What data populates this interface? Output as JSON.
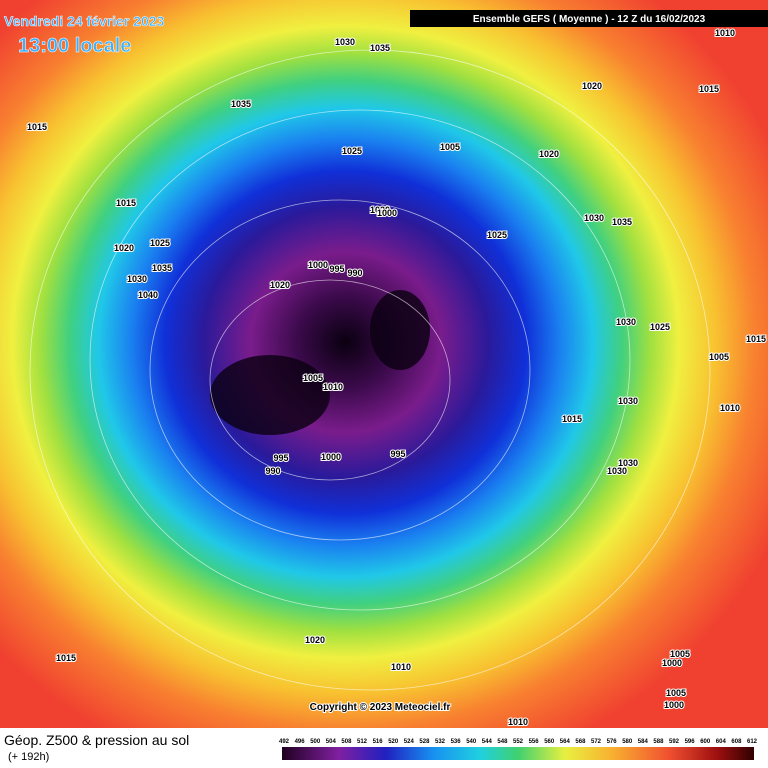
{
  "header": {
    "date": "Vendredi 24 février 2023",
    "time": "13:00 locale",
    "model": "Ensemble GEFS  ( Moyenne )  -  12 Z du 16/02/2023"
  },
  "map": {
    "copyright": "Copyright © 2023 Meteociel.fr",
    "isobar_labels": [
      "1030",
      "1035",
      "1010",
      "1035",
      "1020",
      "1015",
      "1015",
      "1025",
      "1005",
      "1020",
      "1015",
      "1020",
      "1000",
      "1030",
      "1035",
      "1025",
      "1020",
      "1025",
      "1000",
      "995",
      "990",
      "1035",
      "1030",
      "1020",
      "1040",
      "1030",
      "1025",
      "1005",
      "1015",
      "1005",
      "1010",
      "1030",
      "1010",
      "1015",
      "995",
      "1000",
      "995",
      "990",
      "1030",
      "1030",
      "1020",
      "1015",
      "1010",
      "1005",
      "1000",
      "1005",
      "1000",
      "1010"
    ]
  },
  "legend": {
    "title": "Géop. Z500 & pression au sol",
    "lead_time": "(+ 192h)",
    "scale": [
      492,
      496,
      500,
      504,
      508,
      512,
      516,
      520,
      524,
      528,
      532,
      536,
      540,
      544,
      548,
      552,
      556,
      560,
      564,
      568,
      572,
      576,
      580,
      584,
      588,
      592,
      596,
      600,
      604,
      608,
      612
    ]
  }
}
